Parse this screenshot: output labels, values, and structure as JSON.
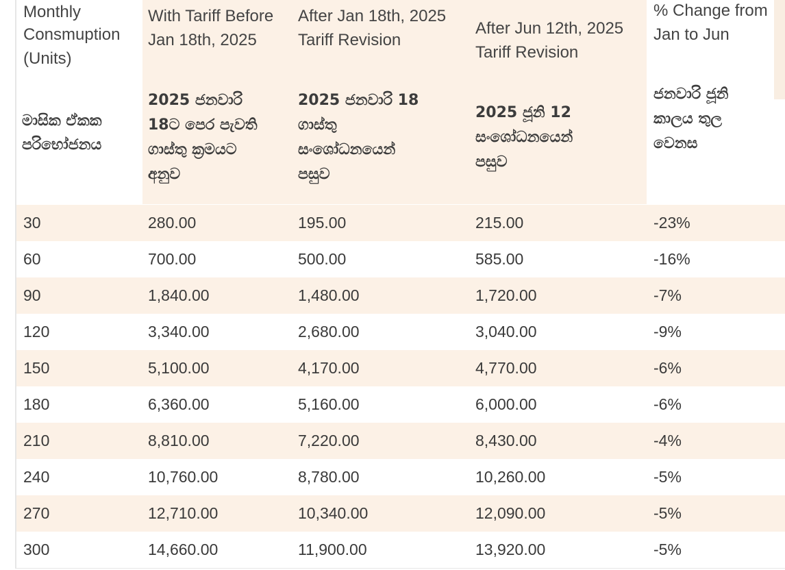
{
  "headers": {
    "c1_en": [
      "Monthly",
      "Consmuption",
      "(Units)"
    ],
    "c1_si": [
      "මාසික ඒකක",
      "පරිභෝජනය"
    ],
    "c2_en": [
      "With Tariff Before",
      "Jan 18th, 2025"
    ],
    "c2_si": [
      "2025 ජනවාරි",
      "18ට පෙර පැවති",
      "ගාස්තු ක්‍රමයට",
      "අනුව"
    ],
    "c3_en": [
      "After Jan 18th, 2025",
      "Tariff Revision"
    ],
    "c3_si": [
      "2025 ජනවාරි 18",
      "ගාස්තු",
      "සංශෝධනයෙන්",
      "පසුව"
    ],
    "c4_en": [
      "After Jun 12th, 2025",
      "Tariff Revision"
    ],
    "c4_si": [
      "2025 ජූනි 12",
      "සංශෝධනයෙන්",
      "පසුව"
    ],
    "c5_en": [
      "% Change from",
      "Jan to Jun"
    ],
    "c5_si": [
      "ජනවාරි ජූනි",
      "කාලය තුල",
      "වෙනස"
    ]
  },
  "rows": [
    [
      "30",
      "280.00",
      "195.00",
      "215.00",
      "-23%"
    ],
    [
      "60",
      "700.00",
      "500.00",
      "585.00",
      "-16%"
    ],
    [
      "90",
      "1,840.00",
      "1,480.00",
      "1,720.00",
      "-7%"
    ],
    [
      "120",
      "3,340.00",
      "2,680.00",
      "3,040.00",
      "-9%"
    ],
    [
      "150",
      "5,100.00",
      "4,170.00",
      "4,770.00",
      "-6%"
    ],
    [
      "180",
      "6,360.00",
      "5,160.00",
      "6,000.00",
      "-6%"
    ],
    [
      "210",
      "8,810.00",
      "7,220.00",
      "8,430.00",
      "-4%"
    ],
    [
      "240",
      "10,760.00",
      "8,780.00",
      "10,260.00",
      "-5%"
    ],
    [
      "270",
      "12,710.00",
      "10,340.00",
      "12,090.00",
      "-5%"
    ],
    [
      "300",
      "14,660.00",
      "11,900.00",
      "13,920.00",
      "-5%"
    ]
  ]
}
